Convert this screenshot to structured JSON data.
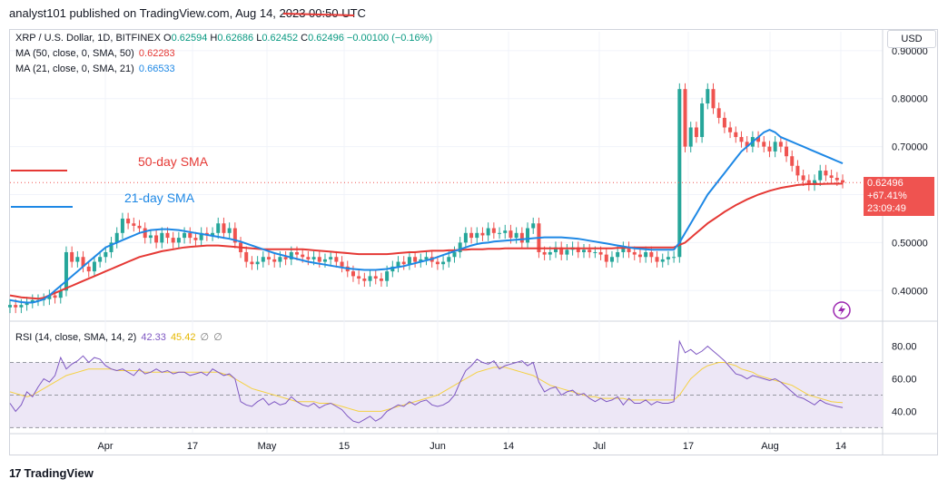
{
  "publisher": "analyst101 published on TradingView.com, Aug 14, 2023 00:50 UTC",
  "symbol_line": {
    "symbol": "XRP / U.S. Dollar, 1D, BITFINEX",
    "open_label": "O",
    "open": "0.62594",
    "high_label": "H",
    "high": "0.62686",
    "low_label": "L",
    "low": "0.62452",
    "close_label": "C",
    "close": "0.62496",
    "change": "−0.00100 (−0.16%)"
  },
  "indicators": {
    "ma50": {
      "label": "MA (50, close, 0, SMA, 50)",
      "value": "0.62283",
      "color": "#e53935"
    },
    "ma21": {
      "label": "MA (21, close, 0, SMA, 21)",
      "value": "0.66533",
      "color": "#1e88e5"
    },
    "rsi": {
      "label": "RSI (14, close, SMA, 14, 2)",
      "value": "42.33",
      "value2": "45.42",
      "extra1": "∅",
      "extra2": "∅"
    }
  },
  "currency_button": "USD",
  "price_tag": {
    "price": "0.62496",
    "change": "+67.41%",
    "countdown": "23:09:49"
  },
  "annotations": {
    "sma50": "50-day SMA",
    "sma21": "21-day SMA"
  },
  "footer": {
    "logo": "17",
    "brand": "TradingView"
  },
  "colors": {
    "up": "#26a69a",
    "down": "#ef5350",
    "sma50": "#e53935",
    "sma21": "#1e88e5",
    "rsi": "#7e57c2",
    "rsi_ma": "#f5d142",
    "rsi_band": "#ede7f6"
  },
  "chart_data": {
    "type": "candlestick",
    "y_ticks": [
      "0.90000",
      "0.80000",
      "0.70000",
      "0.60000",
      "0.50000",
      "0.40000"
    ],
    "y_range": [
      0.34,
      0.93
    ],
    "x_ticks": [
      "Apr",
      "17",
      "May",
      "15",
      "Jun",
      "14",
      "Jul",
      "17",
      "Aug",
      "14"
    ],
    "rsi_ticks": [
      "80.00",
      "60.00",
      "40.00"
    ],
    "rsi_range": [
      28,
      92
    ],
    "rsi_bands": [
      70,
      50,
      30
    ],
    "closes": [
      0.37,
      0.365,
      0.37,
      0.375,
      0.38,
      0.38,
      0.382,
      0.39,
      0.385,
      0.4,
      0.48,
      0.46,
      0.47,
      0.45,
      0.44,
      0.46,
      0.47,
      0.48,
      0.5,
      0.52,
      0.55,
      0.54,
      0.535,
      0.53,
      0.51,
      0.515,
      0.5,
      0.52,
      0.51,
      0.5,
      0.51,
      0.52,
      0.51,
      0.505,
      0.52,
      0.515,
      0.52,
      0.54,
      0.52,
      0.53,
      0.5,
      0.48,
      0.46,
      0.455,
      0.46,
      0.47,
      0.465,
      0.46,
      0.47,
      0.465,
      0.48,
      0.475,
      0.47,
      0.465,
      0.47,
      0.46,
      0.465,
      0.47,
      0.46,
      0.45,
      0.44,
      0.43,
      0.425,
      0.42,
      0.43,
      0.425,
      0.42,
      0.44,
      0.45,
      0.46,
      0.455,
      0.47,
      0.46,
      0.465,
      0.47,
      0.46,
      0.455,
      0.46,
      0.47,
      0.48,
      0.5,
      0.52,
      0.51,
      0.52,
      0.515,
      0.53,
      0.52,
      0.52,
      0.525,
      0.51,
      0.52,
      0.5,
      0.53,
      0.54,
      0.48,
      0.475,
      0.48,
      0.49,
      0.475,
      0.485,
      0.49,
      0.48,
      0.485,
      0.48,
      0.48,
      0.475,
      0.46,
      0.47,
      0.48,
      0.49,
      0.48,
      0.475,
      0.47,
      0.48,
      0.47,
      0.46,
      0.465,
      0.47,
      0.47,
      0.82,
      0.7,
      0.74,
      0.72,
      0.79,
      0.82,
      0.78,
      0.76,
      0.74,
      0.73,
      0.72,
      0.71,
      0.7,
      0.72,
      0.71,
      0.7,
      0.69,
      0.71,
      0.7,
      0.68,
      0.66,
      0.64,
      0.63,
      0.62,
      0.63,
      0.65,
      0.64,
      0.635,
      0.63,
      0.625
    ],
    "sma50": [
      0.39,
      0.388,
      0.386,
      0.385,
      0.384,
      0.383,
      0.385,
      0.39,
      0.395,
      0.4,
      0.405,
      0.41,
      0.415,
      0.42,
      0.425,
      0.43,
      0.435,
      0.44,
      0.445,
      0.45,
      0.455,
      0.46,
      0.465,
      0.47,
      0.473,
      0.476,
      0.479,
      0.482,
      0.484,
      0.486,
      0.488,
      0.49,
      0.491,
      0.492,
      0.493,
      0.494,
      0.494,
      0.494,
      0.493,
      0.492,
      0.491,
      0.49,
      0.489,
      0.488,
      0.487,
      0.486,
      0.486,
      0.486,
      0.486,
      0.486,
      0.486,
      0.486,
      0.486,
      0.485,
      0.484,
      0.483,
      0.482,
      0.481,
      0.48,
      0.479,
      0.478,
      0.477,
      0.476,
      0.476,
      0.476,
      0.476,
      0.476,
      0.476,
      0.477,
      0.478,
      0.479,
      0.48,
      0.48,
      0.481,
      0.482,
      0.483,
      0.483,
      0.483,
      0.484,
      0.484,
      0.485,
      0.485,
      0.486,
      0.486,
      0.486,
      0.487,
      0.487,
      0.487,
      0.488,
      0.488,
      0.488,
      0.488,
      0.488,
      0.488,
      0.488,
      0.488,
      0.488,
      0.488,
      0.488,
      0.488,
      0.488,
      0.488,
      0.488,
      0.488,
      0.488,
      0.488,
      0.488,
      0.488,
      0.489,
      0.489,
      0.49,
      0.49,
      0.49,
      0.49,
      0.49,
      0.49,
      0.49,
      0.49,
      0.49,
      0.495,
      0.5,
      0.51,
      0.52,
      0.53,
      0.54,
      0.548,
      0.556,
      0.564,
      0.571,
      0.578,
      0.584,
      0.59,
      0.595,
      0.6,
      0.604,
      0.608,
      0.611,
      0.614,
      0.616,
      0.618,
      0.62,
      0.621,
      0.622,
      0.622,
      0.622,
      0.6225,
      0.6227,
      0.6228,
      0.62283
    ],
    "sma21": [
      0.38,
      0.378,
      0.376,
      0.375,
      0.375,
      0.378,
      0.382,
      0.39,
      0.4,
      0.41,
      0.42,
      0.43,
      0.44,
      0.45,
      0.46,
      0.47,
      0.48,
      0.49,
      0.495,
      0.5,
      0.505,
      0.51,
      0.515,
      0.52,
      0.523,
      0.526,
      0.527,
      0.528,
      0.528,
      0.527,
      0.526,
      0.524,
      0.522,
      0.52,
      0.518,
      0.516,
      0.514,
      0.512,
      0.51,
      0.508,
      0.505,
      0.502,
      0.498,
      0.494,
      0.49,
      0.486,
      0.482,
      0.478,
      0.475,
      0.472,
      0.469,
      0.466,
      0.463,
      0.46,
      0.458,
      0.456,
      0.454,
      0.452,
      0.45,
      0.448,
      0.446,
      0.445,
      0.444,
      0.443,
      0.443,
      0.443,
      0.444,
      0.445,
      0.447,
      0.449,
      0.451,
      0.454,
      0.457,
      0.46,
      0.463,
      0.466,
      0.47,
      0.474,
      0.478,
      0.482,
      0.486,
      0.49,
      0.494,
      0.497,
      0.499,
      0.5,
      0.502,
      0.503,
      0.504,
      0.505,
      0.506,
      0.507,
      0.508,
      0.509,
      0.51,
      0.511,
      0.511,
      0.511,
      0.511,
      0.51,
      0.509,
      0.508,
      0.506,
      0.504,
      0.502,
      0.5,
      0.498,
      0.496,
      0.494,
      0.492,
      0.49,
      0.488,
      0.487,
      0.486,
      0.485,
      0.485,
      0.485,
      0.485,
      0.485,
      0.5,
      0.52,
      0.54,
      0.56,
      0.58,
      0.6,
      0.615,
      0.63,
      0.645,
      0.66,
      0.675,
      0.69,
      0.7,
      0.71,
      0.72,
      0.73,
      0.735,
      0.73,
      0.72,
      0.715,
      0.71,
      0.705,
      0.7,
      0.695,
      0.69,
      0.685,
      0.68,
      0.675,
      0.67,
      0.665
    ],
    "rsi": [
      45,
      40,
      44,
      52,
      49,
      55,
      60,
      58,
      62,
      73,
      66,
      69,
      71,
      74,
      70,
      73,
      72,
      68,
      66,
      65,
      66,
      64,
      62,
      66,
      63,
      64,
      66,
      64,
      65,
      63,
      64,
      64,
      62,
      63,
      64,
      62,
      66,
      64,
      62,
      63,
      60,
      46,
      44,
      43,
      46,
      48,
      44,
      46,
      44,
      45,
      49,
      46,
      44,
      43,
      45,
      42,
      44,
      45,
      43,
      41,
      37,
      34,
      33,
      35,
      37,
      34,
      36,
      40,
      42,
      44,
      43,
      46,
      44,
      46,
      47,
      44,
      43,
      44,
      46,
      50,
      58,
      65,
      68,
      72,
      70,
      69,
      71,
      66,
      68,
      69,
      70,
      71,
      68,
      70,
      58,
      52,
      54,
      55,
      50,
      52,
      53,
      50,
      51,
      48,
      46,
      48,
      46,
      47,
      49,
      44,
      48,
      45,
      45,
      47,
      44,
      46,
      45,
      45,
      46,
      83,
      76,
      78,
      75,
      77,
      80,
      77,
      74,
      71,
      67,
      63,
      62,
      60,
      62,
      61,
      60,
      59,
      60,
      58,
      55,
      52,
      49,
      48,
      46,
      44,
      47,
      45,
      44,
      43,
      42.33
    ],
    "rsi_ma": [
      52,
      51,
      50,
      49,
      50,
      52,
      54,
      56,
      58,
      60,
      62,
      63,
      64,
      65,
      66,
      66,
      66,
      66,
      66,
      65,
      65,
      65,
      65,
      65,
      64,
      64,
      64,
      64,
      64,
      64,
      64,
      64,
      64,
      64,
      64,
      64,
      64,
      64,
      63,
      62,
      60,
      58,
      56,
      54,
      53,
      52,
      51,
      50,
      49,
      48,
      47,
      46,
      46,
      46,
      46,
      45,
      45,
      45,
      44,
      43,
      42,
      41,
      40,
      40,
      40,
      40,
      40,
      41,
      42,
      43,
      44,
      45,
      46,
      47,
      48,
      49,
      50,
      52,
      54,
      56,
      58,
      60,
      62,
      64,
      65,
      66,
      67,
      67,
      67,
      66,
      65,
      64,
      63,
      62,
      60,
      58,
      56,
      55,
      54,
      53,
      52,
      51,
      50,
      49,
      49,
      48,
      48,
      48,
      48,
      48,
      47,
      47,
      47,
      47,
      47,
      47,
      47,
      47,
      47,
      50,
      55,
      60,
      63,
      66,
      68,
      69,
      70,
      70,
      69,
      68,
      66,
      65,
      64,
      62,
      61,
      60,
      59,
      58,
      57,
      56,
      54,
      52,
      50,
      49,
      48,
      47,
      46,
      45.6,
      45.42
    ]
  }
}
